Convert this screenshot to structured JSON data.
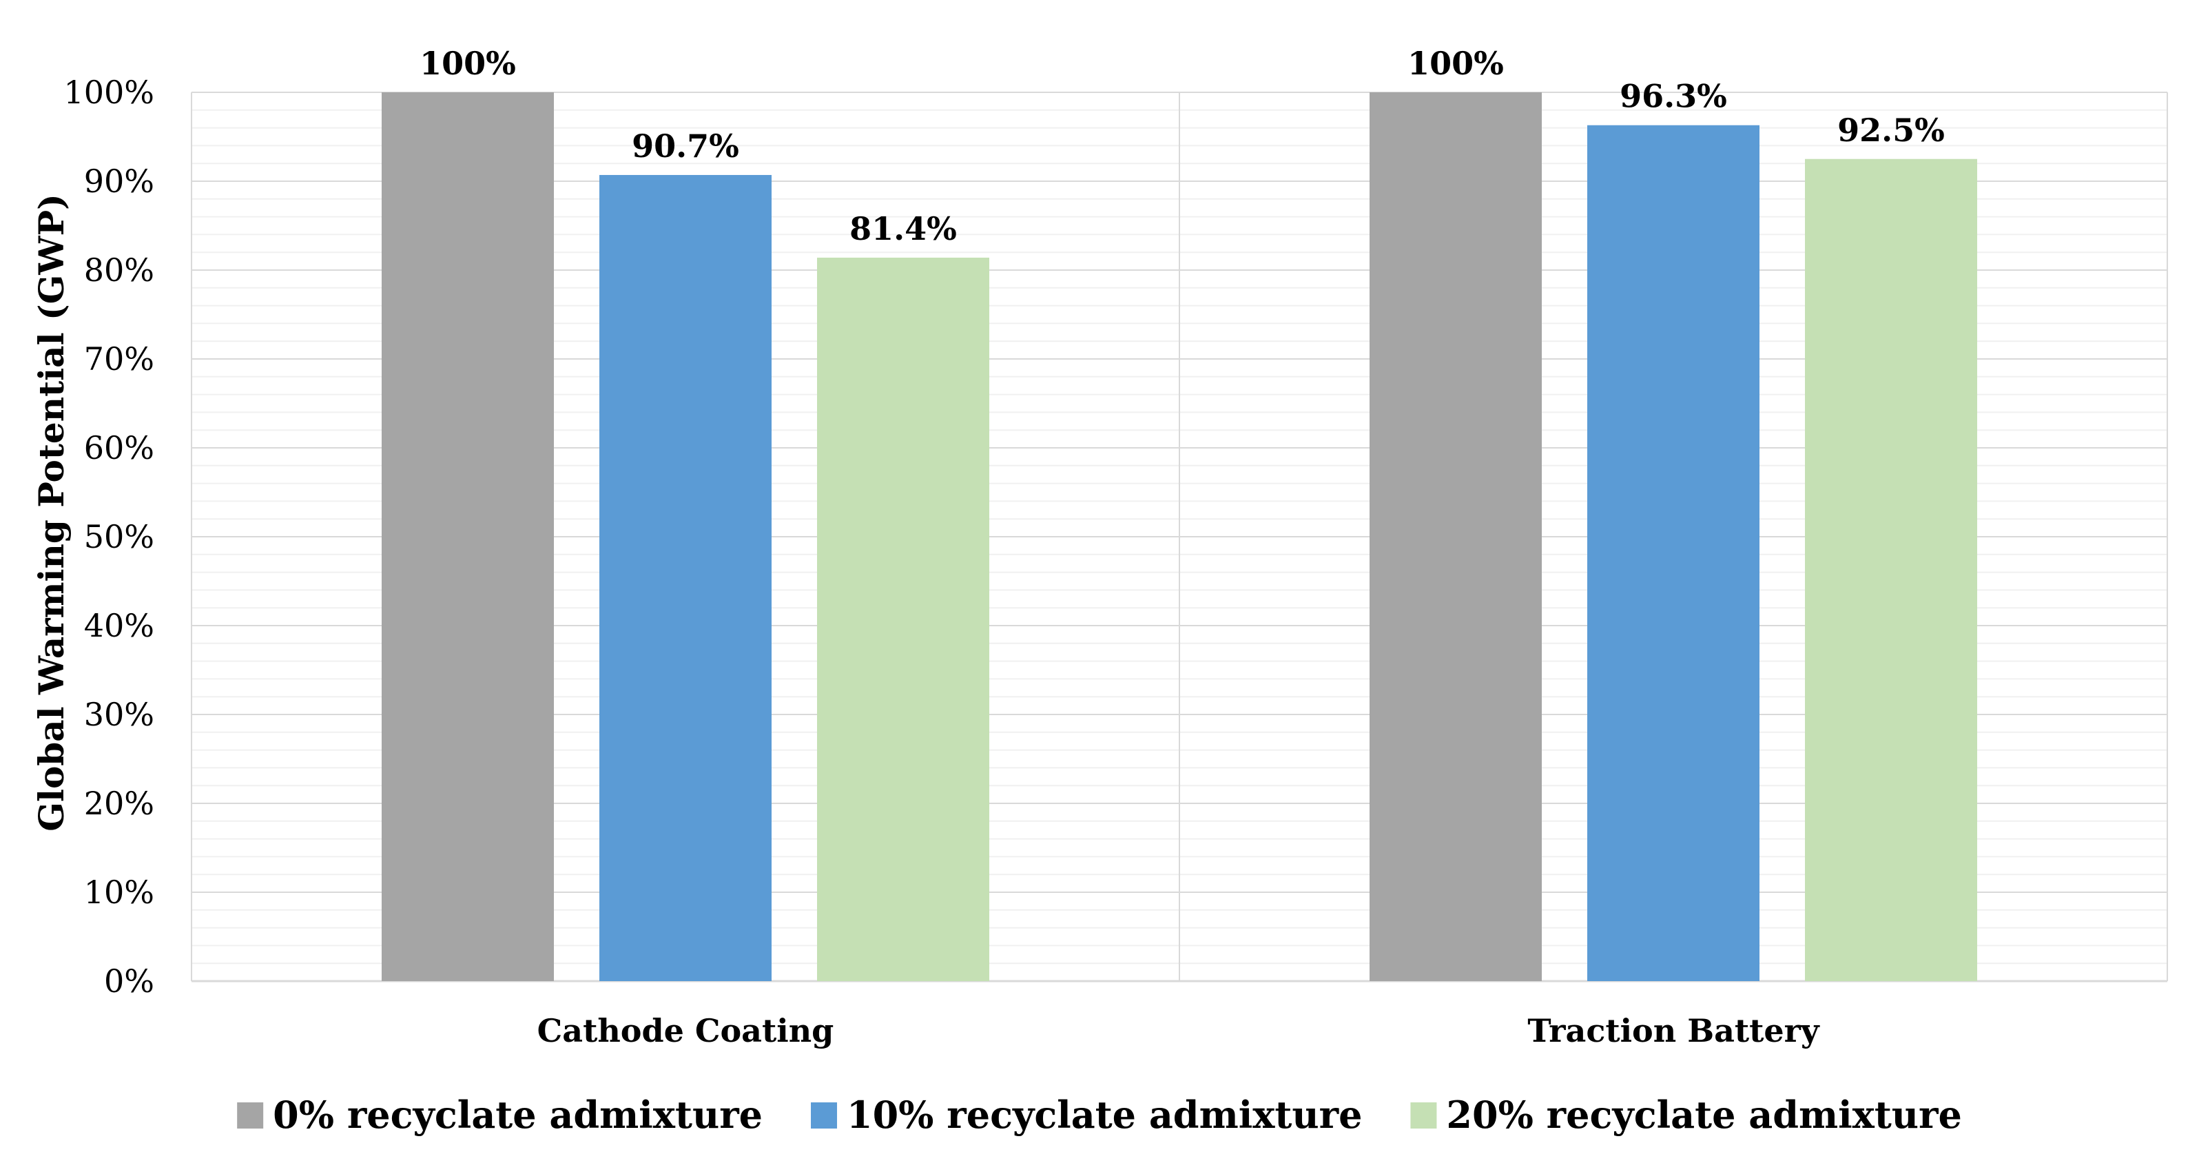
{
  "chart_data": {
    "type": "bar",
    "title": "",
    "xlabel": "",
    "ylabel": "Global Warming Potential (GWP)",
    "ylim": [
      0,
      100
    ],
    "ytick_step": 10,
    "yticks": [
      "0%",
      "10%",
      "20%",
      "30%",
      "40%",
      "50%",
      "60%",
      "70%",
      "80%",
      "90%",
      "100%"
    ],
    "categories": [
      "Cathode Coating",
      "Traction Battery"
    ],
    "series": [
      {
        "name": "0% recyclate admixture",
        "color": "#a5a5a5",
        "values": [
          100,
          100
        ],
        "labels": [
          "100%",
          "100%"
        ]
      },
      {
        "name": "10% recyclate admixture",
        "color": "#5b9bd5",
        "values": [
          90.7,
          96.3
        ],
        "labels": [
          "90.7%",
          "96.3%"
        ]
      },
      {
        "name": "20% recyclate admixture",
        "color": "#c5e0b4",
        "values": [
          81.4,
          92.5
        ],
        "labels": [
          "81.4%",
          "92.5%"
        ]
      }
    ],
    "legend_position": "bottom",
    "grid": true
  }
}
